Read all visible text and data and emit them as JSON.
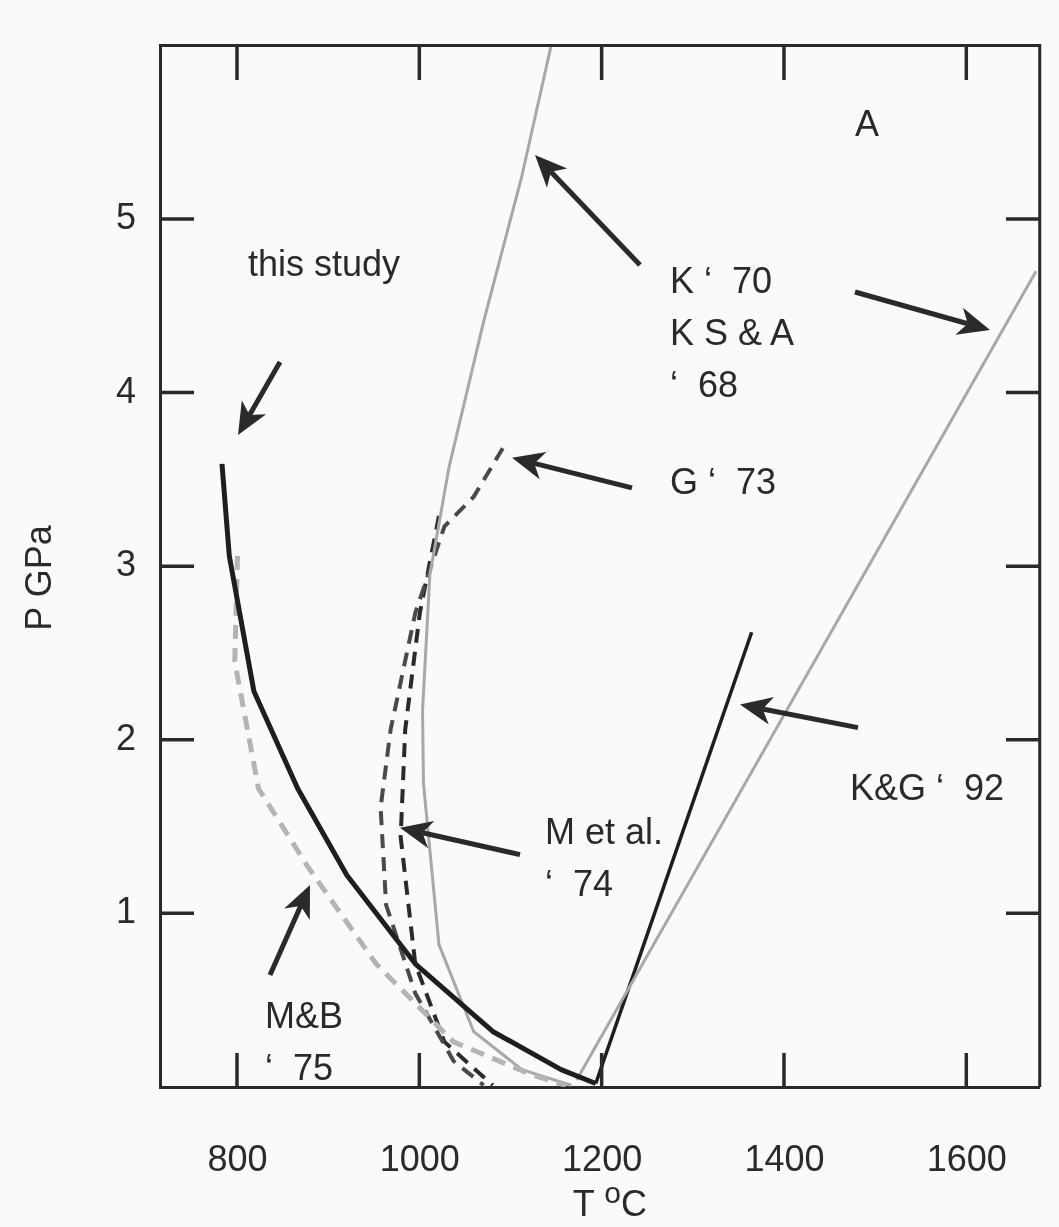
{
  "chart_data": {
    "type": "line",
    "xlabel": "T $^{o}$C",
    "ylabel": "P GPa",
    "xlim": [
      715,
      1680
    ],
    "ylim": [
      0,
      6
    ],
    "xticks": [
      800,
      1000,
      1200,
      1400,
      1600
    ],
    "yticks": [
      1,
      2,
      3,
      4,
      5
    ],
    "grid": false,
    "legend": false,
    "marker": "none",
    "series": [
      {
        "color": "#1e1e1e",
        "line_style": "solid",
        "x": [
          783,
          791,
          818,
          866,
          920,
          995,
          1080,
          1155,
          1193
        ],
        "values": [
          3.59,
          3.06,
          2.28,
          1.72,
          1.22,
          0.71,
          0.32,
          0.1,
          0.02
        ]
      },
      {
        "color": "#b4b4b4",
        "line_style": "dashed",
        "x": [
          800,
          797,
          823,
          877,
          952,
          1037,
          1123,
          1160
        ],
        "values": [
          3.06,
          2.45,
          1.72,
          1.27,
          0.71,
          0.26,
          0.07,
          0.01
        ]
      },
      {
        "color": "#a8a8a8",
        "line_style": "solid",
        "x": [
          1144,
          1112,
          1070,
          1032,
          1011,
          1003,
          1004,
          1021,
          1059,
          1112,
          1166
        ],
        "values": [
          6.0,
          5.25,
          4.41,
          3.57,
          2.95,
          2.17,
          1.75,
          0.82,
          0.32,
          0.1,
          0.01
        ]
      },
      {
        "color": "#a8a8a8",
        "line_style": "solid",
        "x": [
          1172,
          1676
        ],
        "values": [
          0.04,
          4.7
        ]
      },
      {
        "color": "#1e1e1e",
        "line_style": "solid",
        "x": [
          1193,
          1364
        ],
        "values": [
          0.02,
          2.62
        ]
      },
      {
        "color": "#4a4a4a",
        "line_style": "dashed",
        "x": [
          1091,
          1059,
          1027,
          995,
          968,
          957,
          963,
          995,
          1037,
          1070
        ],
        "values": [
          3.68,
          3.4,
          3.23,
          2.73,
          2.06,
          1.61,
          1.05,
          0.54,
          0.15,
          0.01
        ]
      },
      {
        "color": "#2a2a2a",
        "line_style": "dashed",
        "x": [
          1021,
          1000,
          984,
          979,
          995,
          1027,
          1080
        ],
        "values": [
          3.29,
          2.73,
          2.06,
          1.44,
          0.71,
          0.26,
          0.01
        ]
      }
    ],
    "annotations": [
      "this study",
      "K ‘  70\nK S & A\n‘  68",
      "G ‘  73",
      "M et al.\n‘  74",
      "K&G ‘  92",
      "M&B\n‘  75",
      "A"
    ]
  }
}
